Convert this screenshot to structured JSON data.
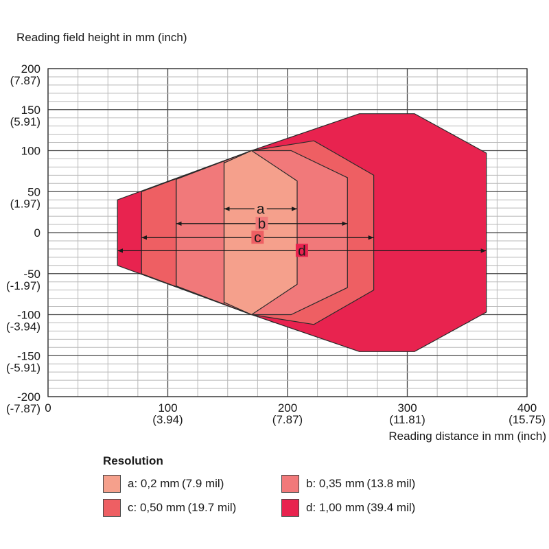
{
  "chart_data": {
    "type": "area",
    "ylabel": "Reading field height in mm (inch)",
    "xlabel": "Reading distance in mm (inch)",
    "xlim": [
      0,
      400
    ],
    "ylim": [
      -200,
      200
    ],
    "grid": true,
    "x_ticks": [
      {
        "value": 0,
        "mm": "0",
        "inch": ""
      },
      {
        "value": 100,
        "mm": "100",
        "inch": "(3.94)"
      },
      {
        "value": 200,
        "mm": "200",
        "inch": "(7.87)"
      },
      {
        "value": 300,
        "mm": "300",
        "inch": "(11.81)"
      },
      {
        "value": 400,
        "mm": "400",
        "inch": "(15.75)"
      }
    ],
    "y_ticks": [
      {
        "value": 200,
        "mm": "200",
        "inch": "(7.87)"
      },
      {
        "value": 150,
        "mm": "150",
        "inch": "(5.91)"
      },
      {
        "value": 100,
        "mm": "100",
        "inch": ""
      },
      {
        "value": 50,
        "mm": "50",
        "inch": "(1.97)"
      },
      {
        "value": 0,
        "mm": "0",
        "inch": ""
      },
      {
        "value": -50,
        "mm": "-50",
        "inch": "(-1.97)"
      },
      {
        "value": -100,
        "mm": "-100",
        "inch": "(-3.94)"
      },
      {
        "value": -150,
        "mm": "-150",
        "inch": "(-5.91)"
      },
      {
        "value": -200,
        "mm": "-200",
        "inch": "(-7.87)"
      }
    ],
    "series": [
      {
        "name": "d",
        "color": "#e8234f",
        "polygon": [
          [
            58,
            40
          ],
          [
            170,
            100
          ],
          [
            260,
            145
          ],
          [
            306,
            145
          ],
          [
            366,
            97
          ],
          [
            366,
            -97
          ],
          [
            306,
            -145
          ],
          [
            260,
            -145
          ],
          [
            170,
            -100
          ],
          [
            58,
            -40
          ]
        ],
        "range": [
          58,
          366
        ],
        "arrow_y": -22
      },
      {
        "name": "c",
        "color": "#ee5f63",
        "polygon": [
          [
            78,
            50
          ],
          [
            170,
            100
          ],
          [
            222,
            112
          ],
          [
            272,
            70
          ],
          [
            272,
            -70
          ],
          [
            222,
            -112
          ],
          [
            170,
            -100
          ],
          [
            78,
            -50
          ]
        ],
        "range": [
          78,
          272
        ],
        "arrow_y": -6
      },
      {
        "name": "b",
        "color": "#f1797a",
        "polygon": [
          [
            107,
            65
          ],
          [
            170,
            100
          ],
          [
            203,
            100
          ],
          [
            250,
            67
          ],
          [
            250,
            -67
          ],
          [
            203,
            -100
          ],
          [
            170,
            -100
          ],
          [
            107,
            -65
          ]
        ],
        "range": [
          107,
          250
        ],
        "arrow_y": 11
      },
      {
        "name": "a",
        "color": "#f5a08c",
        "polygon": [
          [
            147,
            85
          ],
          [
            170,
            100
          ],
          [
            208,
            63
          ],
          [
            208,
            -63
          ],
          [
            170,
            -100
          ],
          [
            147,
            -85
          ]
        ],
        "range": [
          147,
          208
        ],
        "arrow_y": 29
      }
    ],
    "dividers": [
      78,
      107,
      147
    ]
  },
  "legend": {
    "title": "Resolution",
    "items": [
      {
        "label": "a: 0,2 mm (7.9 mil)",
        "color": "#f5a08c"
      },
      {
        "label": "b: 0,35 mm (13.8 mil)",
        "color": "#f1797a"
      },
      {
        "label": "c: 0,50 mm (19.7 mil)",
        "color": "#ee5f63"
      },
      {
        "label": "d: 1,00 mm (39.4 mil)",
        "color": "#e8234f"
      }
    ]
  }
}
